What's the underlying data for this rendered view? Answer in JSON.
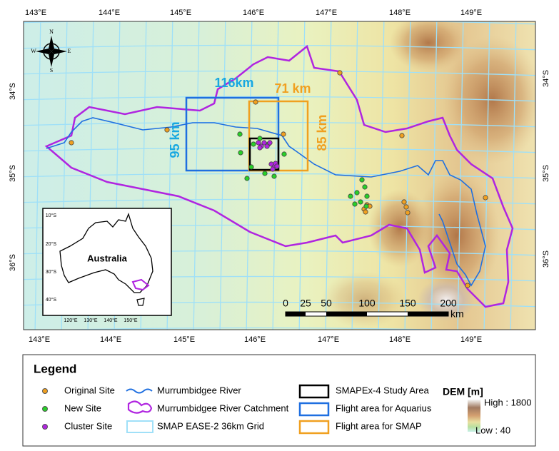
{
  "map": {
    "lon_labels_top": [
      "143°E",
      "144°E",
      "145°E",
      "146°E",
      "147°E",
      "148°E",
      "149°E"
    ],
    "lon_labels_bottom": [
      "143°E",
      "144°E",
      "145°E",
      "146°E",
      "147°E",
      "148°E",
      "149°E"
    ],
    "lat_labels_left": [
      "34°S",
      "35°S",
      "36°S"
    ],
    "lat_labels_right": [
      "34°S",
      "35°S",
      "36°S"
    ],
    "annotations": {
      "aquarius_width": "116km",
      "smap_width": "71 km",
      "aquarius_height": "95 km",
      "smap_height": "85 km"
    },
    "compass": {
      "north": "N",
      "east": "E",
      "south": "S",
      "west": "W"
    },
    "scale_bar": {
      "ticks": [
        "0",
        "25",
        "50",
        "100",
        "150",
        "200"
      ],
      "unit": "km"
    },
    "inset": {
      "title": "Australia",
      "lat_labels": [
        "10°S",
        "20°S",
        "30°S",
        "40°S"
      ],
      "lon_labels": [
        "120°E",
        "130°E",
        "140°E",
        "150°E"
      ]
    }
  },
  "legend": {
    "title": "Legend",
    "items": [
      "Original Site",
      "New Site",
      "Cluster Site",
      "Murrumbidgee River",
      "Murrumbidgee River Catchment",
      "SMAP EASE-2 36km Grid",
      "SMAPEx-4 Study Area",
      "Flight area for Aquarius",
      "Flight area for SMAP"
    ],
    "dem": {
      "title": "DEM [m]",
      "high": "High : 1800",
      "low": "Low : 40"
    }
  }
}
